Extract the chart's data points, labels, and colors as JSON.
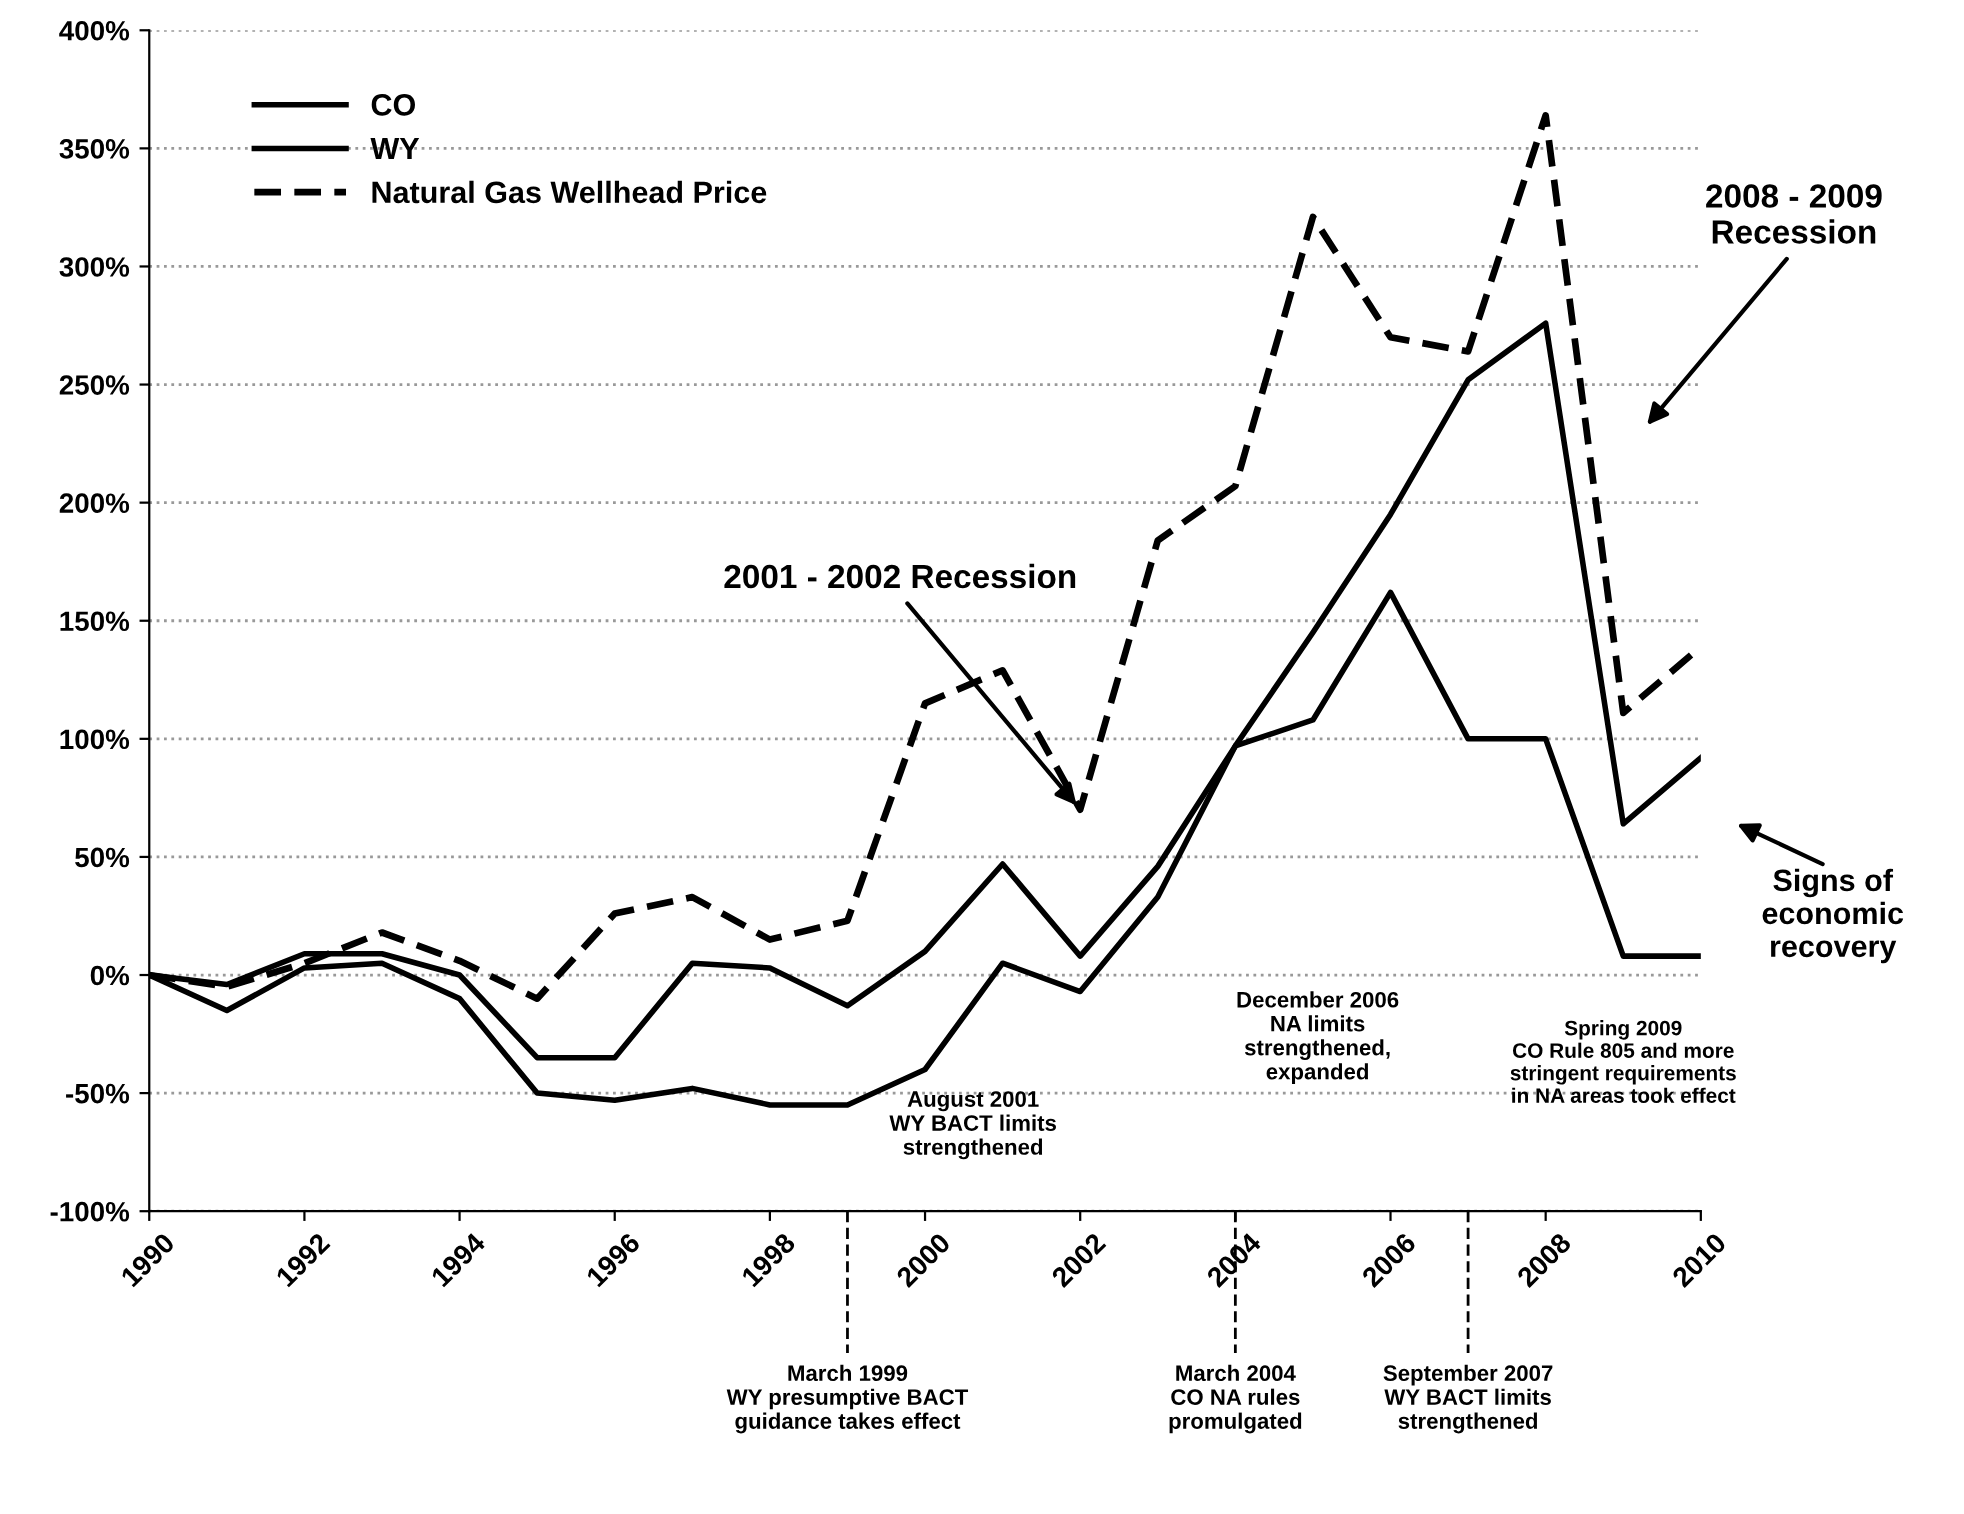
{
  "chart_data": {
    "type": "line",
    "x": [
      1990,
      1991,
      1992,
      1993,
      1994,
      1995,
      1996,
      1997,
      1998,
      1999,
      2000,
      2001,
      2002,
      2003,
      2004,
      2005,
      2006,
      2007,
      2008,
      2009,
      2010
    ],
    "series": [
      {
        "name": "CO",
        "color": "#000000",
        "line_style": "solid",
        "values": [
          0,
          -4,
          9,
          9,
          0,
          -35,
          -35,
          5,
          3,
          -13,
          10,
          47,
          8,
          46,
          97,
          145,
          195,
          252,
          276,
          64,
          92
        ]
      },
      {
        "name": "WY",
        "color": "#000000",
        "line_style": "solid",
        "values": [
          0,
          -15,
          3,
          5,
          -10,
          -50,
          -53,
          -48,
          -55,
          -55,
          -40,
          5,
          -7,
          33,
          97,
          108,
          162,
          100,
          100,
          8,
          8
        ]
      },
      {
        "name": "Natural Gas Wellhead Price",
        "color": "#000000",
        "line_style": "dashed",
        "values": [
          0,
          -5,
          5,
          18,
          6,
          -10,
          26,
          33,
          15,
          23,
          115,
          129,
          70,
          184,
          207,
          321,
          270,
          264,
          364,
          111,
          139
        ]
      }
    ],
    "xlim": [
      1990,
      2010
    ],
    "xticks": [
      1990,
      1992,
      1994,
      1996,
      1998,
      2000,
      2002,
      2004,
      2006,
      2008,
      2010
    ],
    "ylim": [
      -100,
      400
    ],
    "yticks": [
      {
        "value": -100,
        "label": "-100%"
      },
      {
        "value": -50,
        "label": "-50%"
      },
      {
        "value": 0,
        "label": "0%"
      },
      {
        "value": 50,
        "label": "50%"
      },
      {
        "value": 100,
        "label": "100%"
      },
      {
        "value": 150,
        "label": "150%"
      },
      {
        "value": 200,
        "label": "200%"
      },
      {
        "value": 250,
        "label": "250%"
      },
      {
        "value": 300,
        "label": "300%"
      },
      {
        "value": 350,
        "label": "350%"
      },
      {
        "value": 400,
        "label": "400%"
      }
    ],
    "grid": "y",
    "legend": "top left",
    "ref_lines": [
      {
        "axis": "x",
        "value": 1999,
        "label": "March 1999\nWY presumptive BACT\nguidance takes effect",
        "line_style": "dashed",
        "color": "#000000"
      },
      {
        "axis": "x",
        "value": 2004,
        "label": "March 2004\nCO NA rules\npromulgated",
        "line_style": "dashed",
        "color": "#000000"
      },
      {
        "axis": "x",
        "value": 2007,
        "label": "September 2007\nWY BACT limits\nstrengthened",
        "line_style": "dashed",
        "color": "#000000"
      }
    ],
    "annotations": [
      {
        "text": "2001 - 2002 Recession",
        "x": 2002,
        "y": 70
      },
      "2008 - 2009\nRecession",
      "Signs of\neconomic\nrecovery",
      "August 2001\nWY BACT limits\nstrengthened",
      "December 2006\nNA limits\nstrengthened,\nexpanded",
      "Spring 2009\nCO Rule 805 and more\nstringent requirements\nin NA areas took effect"
    ]
  }
}
